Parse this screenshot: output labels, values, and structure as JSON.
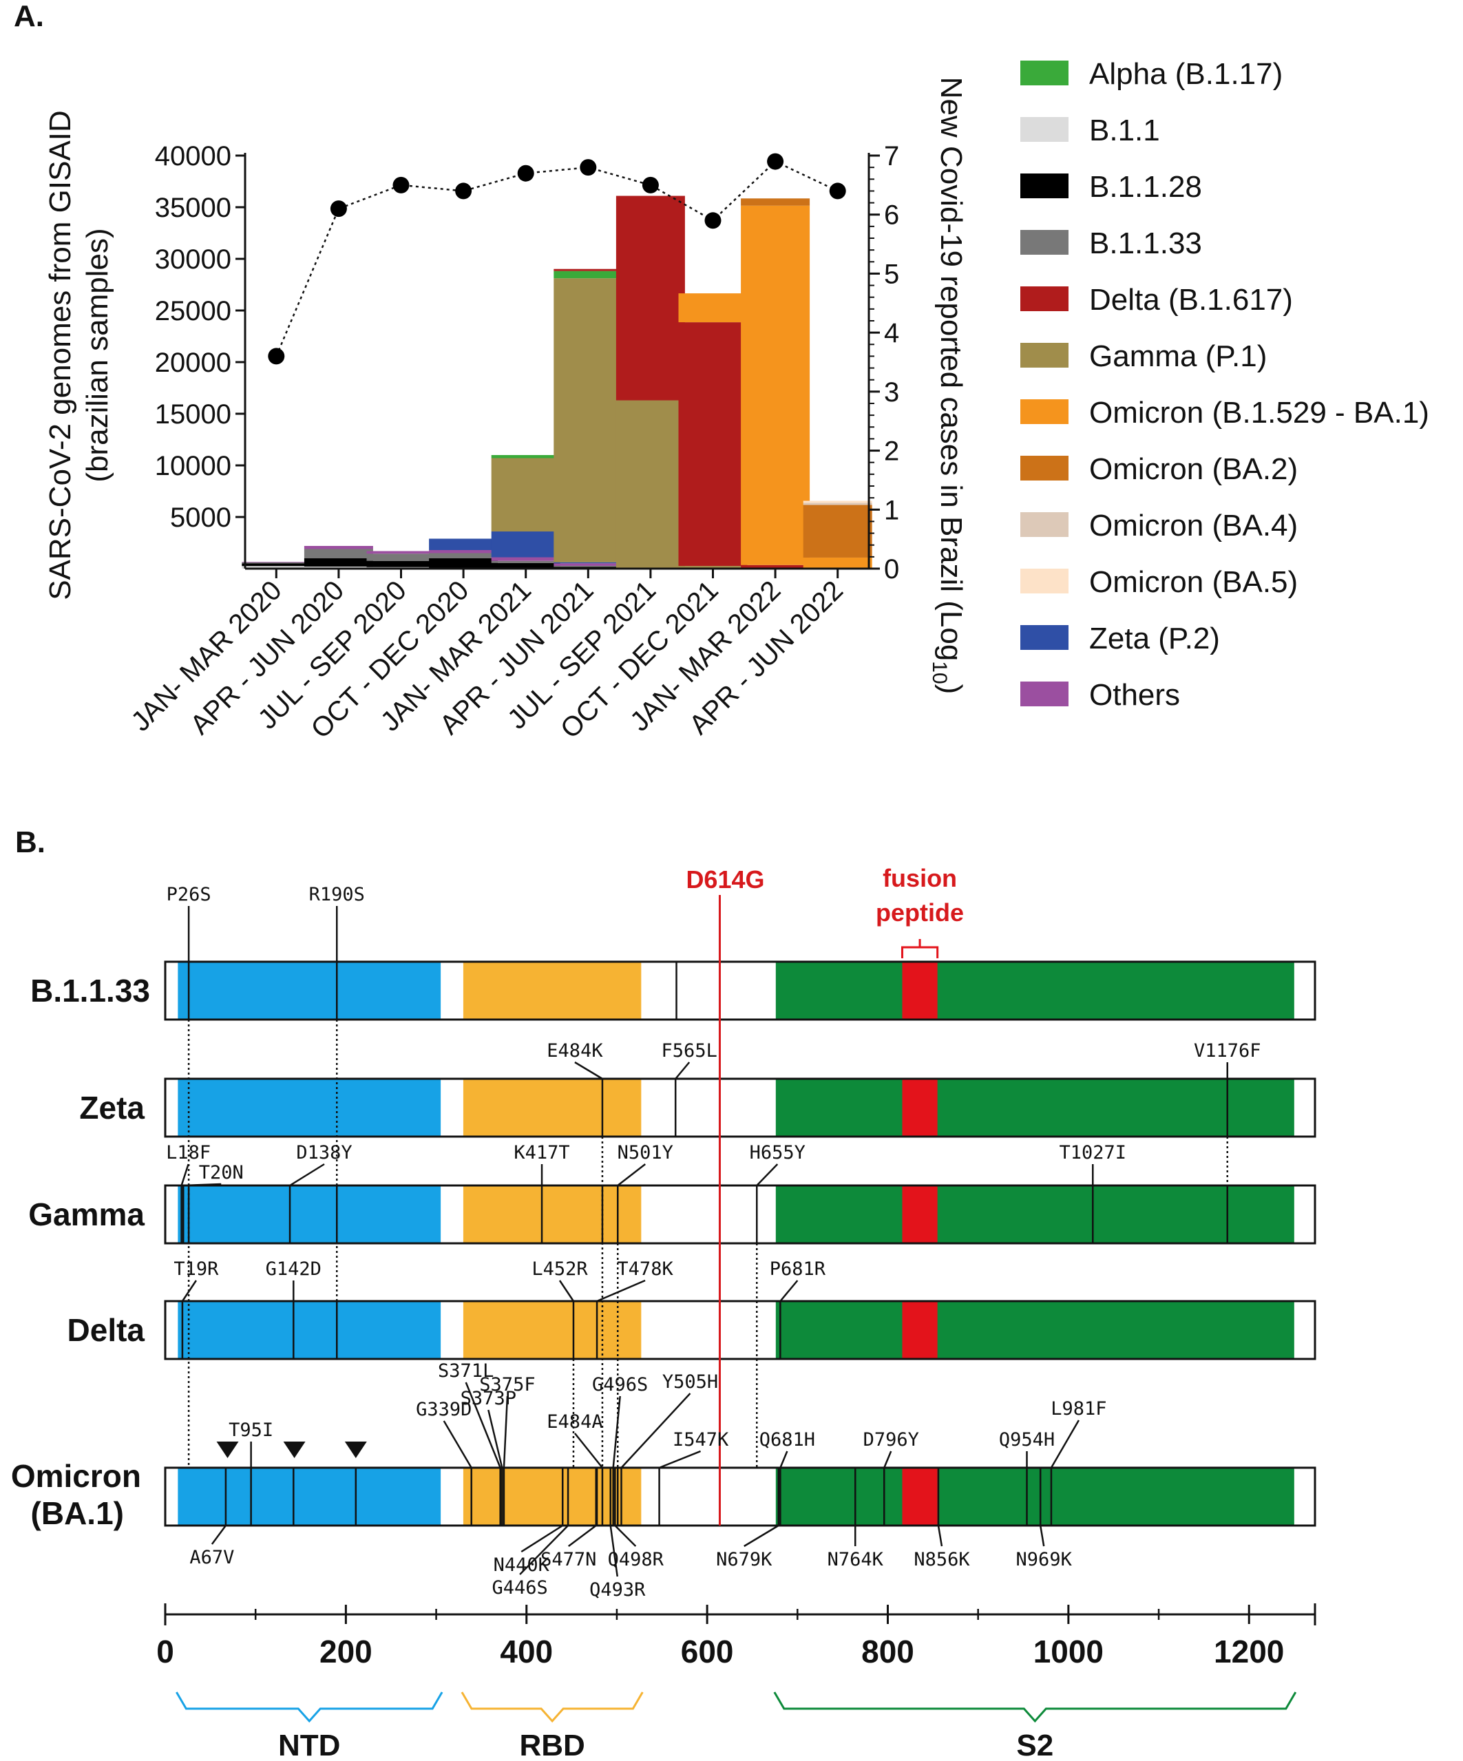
{
  "panel_a": {
    "label": "A."
  },
  "panel_b": {
    "label": "B."
  },
  "chart_data": {
    "type": "bar",
    "stacked": true,
    "y_left_label": [
      "SARS-CoV-2 genomes from GISAID",
      "(brazilian samples)"
    ],
    "y_right_label_main": "New Covid-19 reported cases in Brazil (Log",
    "y_right_label_sub": "10",
    "y_right_label_end": ")",
    "ylim": [
      0,
      40000
    ],
    "y_ticks": [
      5000,
      10000,
      15000,
      20000,
      25000,
      30000,
      35000,
      40000
    ],
    "y2lim": [
      0,
      7
    ],
    "y2_ticks": [
      0,
      1,
      2,
      3,
      4,
      5,
      6,
      7
    ],
    "categories": [
      "JAN- MAR 2020",
      "APR - JUN 2020",
      "JUL - SEP 2020",
      "OCT - DEC 2020",
      "JAN- MAR 2021",
      "APR - JUN 2021",
      "JUL - SEP 2021",
      "OCT - DEC 2021",
      "JAN- MAR 2022",
      "APR - JUN 2022"
    ],
    "series": [
      {
        "name": "B.1.1",
        "color": "#dcdcdc",
        "values": [
          250,
          200,
          150,
          100,
          50,
          20,
          10,
          0,
          0,
          0
        ]
      },
      {
        "name": "B.1.1.28",
        "color": "#000000",
        "values": [
          250,
          800,
          600,
          900,
          500,
          150,
          20,
          10,
          0,
          0
        ]
      },
      {
        "name": "B.1.1.33",
        "color": "#787878",
        "values": [
          100,
          900,
          700,
          500,
          200,
          100,
          20,
          0,
          0,
          0
        ]
      },
      {
        "name": "Others",
        "color": "#9b4fa0",
        "values": [
          50,
          300,
          250,
          300,
          350,
          250,
          50,
          50,
          50,
          20
        ]
      },
      {
        "name": "Zeta (P.2)",
        "color": "#2f4fa6",
        "values": [
          0,
          0,
          0,
          1100,
          2500,
          100,
          0,
          0,
          0,
          0
        ]
      },
      {
        "name": "Gamma (P.1)",
        "color": "#a08d4b",
        "values": [
          0,
          0,
          0,
          0,
          7100,
          27500,
          16200,
          200,
          0,
          0
        ]
      },
      {
        "name": "Alpha (B.1.17)",
        "color": "#3aaa3a",
        "values": [
          0,
          0,
          0,
          0,
          300,
          700,
          0,
          0,
          0,
          0
        ]
      },
      {
        "name": "Delta (B.1.617)",
        "color": "#b01c1c",
        "values": [
          0,
          0,
          0,
          0,
          0,
          200,
          19800,
          23600,
          300,
          50
        ]
      },
      {
        "name": "Omicron (B.1.529 - BA.1)",
        "color": "#f5941d",
        "values": [
          0,
          0,
          0,
          0,
          0,
          0,
          0,
          2800,
          34800,
          1000
        ]
      },
      {
        "name": "Omicron (BA.2)",
        "color": "#cc7218",
        "values": [
          0,
          0,
          0,
          0,
          0,
          0,
          0,
          0,
          700,
          5100
        ]
      },
      {
        "name": "Omicron (BA.4)",
        "color": "#ddc9b8",
        "values": [
          0,
          0,
          0,
          0,
          0,
          0,
          0,
          0,
          0,
          200
        ]
      },
      {
        "name": "Omicron (BA.5)",
        "color": "#fde2c8",
        "values": [
          0,
          0,
          0,
          0,
          0,
          0,
          0,
          0,
          0,
          200
        ]
      }
    ],
    "line_series": {
      "name": "New Covid-19 reported cases (Log10)",
      "axis": "right",
      "values": [
        3.6,
        6.1,
        6.5,
        6.4,
        6.7,
        6.8,
        6.5,
        5.9,
        6.9,
        6.4
      ]
    },
    "legend_order": [
      "Alpha (B.1.17)",
      "B.1.1",
      "B.1.1.28",
      "B.1.1.33",
      "Delta (B.1.617)",
      "Gamma (P.1)",
      "Omicron (B.1.529 - BA.1)",
      "Omicron (BA.2)",
      "Omicron (BA.4)",
      "Omicron (BA.5)",
      "Zeta (P.2)",
      "Others"
    ]
  },
  "spike_data": {
    "xlim": [
      0,
      1273
    ],
    "scale_ticks": [
      0,
      200,
      400,
      600,
      800,
      1000,
      1200
    ],
    "minor_ticks": [
      100,
      300,
      500,
      700,
      900,
      1100
    ],
    "domains": [
      {
        "name": "NTD",
        "start": 14,
        "end": 305,
        "color": "#17a2e6"
      },
      {
        "name": "RBD",
        "start": 330,
        "end": 527,
        "color": "#f6b333"
      },
      {
        "name": "S2",
        "start": 676,
        "end": 1250,
        "color": "#0d8a3a"
      }
    ],
    "fusion_peptide": {
      "start": 816,
      "end": 855,
      "color": "#e3131b",
      "label_line1": "fusion",
      "label_line2": "peptide"
    },
    "d614g": {
      "pos": 614,
      "label": "D614G",
      "color": "#d7191c"
    },
    "variants": [
      {
        "name": "B.1.1.33",
        "mutations": [
          {
            "label": "P26S",
            "pos": 26,
            "side": "top"
          },
          {
            "label": "R190S",
            "pos": 190,
            "side": "top"
          }
        ],
        "unlabeled": [
          566
        ]
      },
      {
        "name": "Zeta",
        "mutations": [
          {
            "label": "E484K",
            "pos": 484,
            "side": "top"
          },
          {
            "label": "F565L",
            "pos": 565,
            "side": "top"
          },
          {
            "label": "V1176F",
            "pos": 1176,
            "side": "top"
          }
        ],
        "unlabeled": []
      },
      {
        "name": "Gamma",
        "mutations": [
          {
            "label": "L18F",
            "pos": 18,
            "side": "top"
          },
          {
            "label": "T20N",
            "pos": 20,
            "side": "top"
          },
          {
            "label": "D138Y",
            "pos": 138,
            "side": "top"
          },
          {
            "label": "K417T",
            "pos": 417,
            "side": "top"
          },
          {
            "label": "N501Y",
            "pos": 501,
            "side": "top"
          },
          {
            "label": "H655Y",
            "pos": 655,
            "side": "top"
          },
          {
            "label": "T1027I",
            "pos": 1027,
            "side": "top"
          }
        ],
        "unlabeled": [
          26,
          190,
          484,
          1176
        ]
      },
      {
        "name": "Delta",
        "mutations": [
          {
            "label": "T19R",
            "pos": 19,
            "side": "top"
          },
          {
            "label": "G142D",
            "pos": 142,
            "side": "top"
          },
          {
            "label": "L452R",
            "pos": 452,
            "side": "top"
          },
          {
            "label": "T478K",
            "pos": 478,
            "side": "top"
          },
          {
            "label": "P681R",
            "pos": 681,
            "side": "top"
          }
        ],
        "unlabeled": [
          190
        ]
      },
      {
        "name_line1": "Omicron",
        "name_line2": "(BA.1)",
        "mutations": [
          {
            "label": "T95I",
            "pos": 95,
            "side": "top"
          },
          {
            "label": "G339D",
            "pos": 339,
            "side": "top"
          },
          {
            "label": "S371L",
            "pos": 371,
            "side": "top"
          },
          {
            "label": "S373P",
            "pos": 373,
            "side": "top"
          },
          {
            "label": "S375F",
            "pos": 375,
            "side": "top"
          },
          {
            "label": "E484A",
            "pos": 484,
            "side": "top"
          },
          {
            "label": "G496S",
            "pos": 496,
            "side": "top"
          },
          {
            "label": "Y505H",
            "pos": 505,
            "side": "top"
          },
          {
            "label": "I547K",
            "pos": 547,
            "side": "top"
          },
          {
            "label": "Q681H",
            "pos": 681,
            "side": "top"
          },
          {
            "label": "D796Y",
            "pos": 796,
            "side": "top"
          },
          {
            "label": "Q954H",
            "pos": 954,
            "side": "top"
          },
          {
            "label": "L981F",
            "pos": 981,
            "side": "top"
          },
          {
            "label": "A67V",
            "pos": 67,
            "side": "bottom"
          },
          {
            "label": "N440K",
            "pos": 440,
            "side": "bottom"
          },
          {
            "label": "G446S",
            "pos": 446,
            "side": "bottom"
          },
          {
            "label": "S477N",
            "pos": 477,
            "side": "bottom"
          },
          {
            "label": "Q493R",
            "pos": 493,
            "side": "bottom"
          },
          {
            "label": "Q498R",
            "pos": 498,
            "side": "bottom"
          },
          {
            "label": "N679K",
            "pos": 679,
            "side": "bottom"
          },
          {
            "label": "N764K",
            "pos": 764,
            "side": "bottom"
          },
          {
            "label": "N856K",
            "pos": 856,
            "side": "bottom"
          },
          {
            "label": "N969K",
            "pos": 969,
            "side": "bottom"
          }
        ],
        "unlabeled": [
          142,
          211,
          478,
          501
        ],
        "deletions": [
          69,
          143,
          211
        ]
      }
    ]
  }
}
